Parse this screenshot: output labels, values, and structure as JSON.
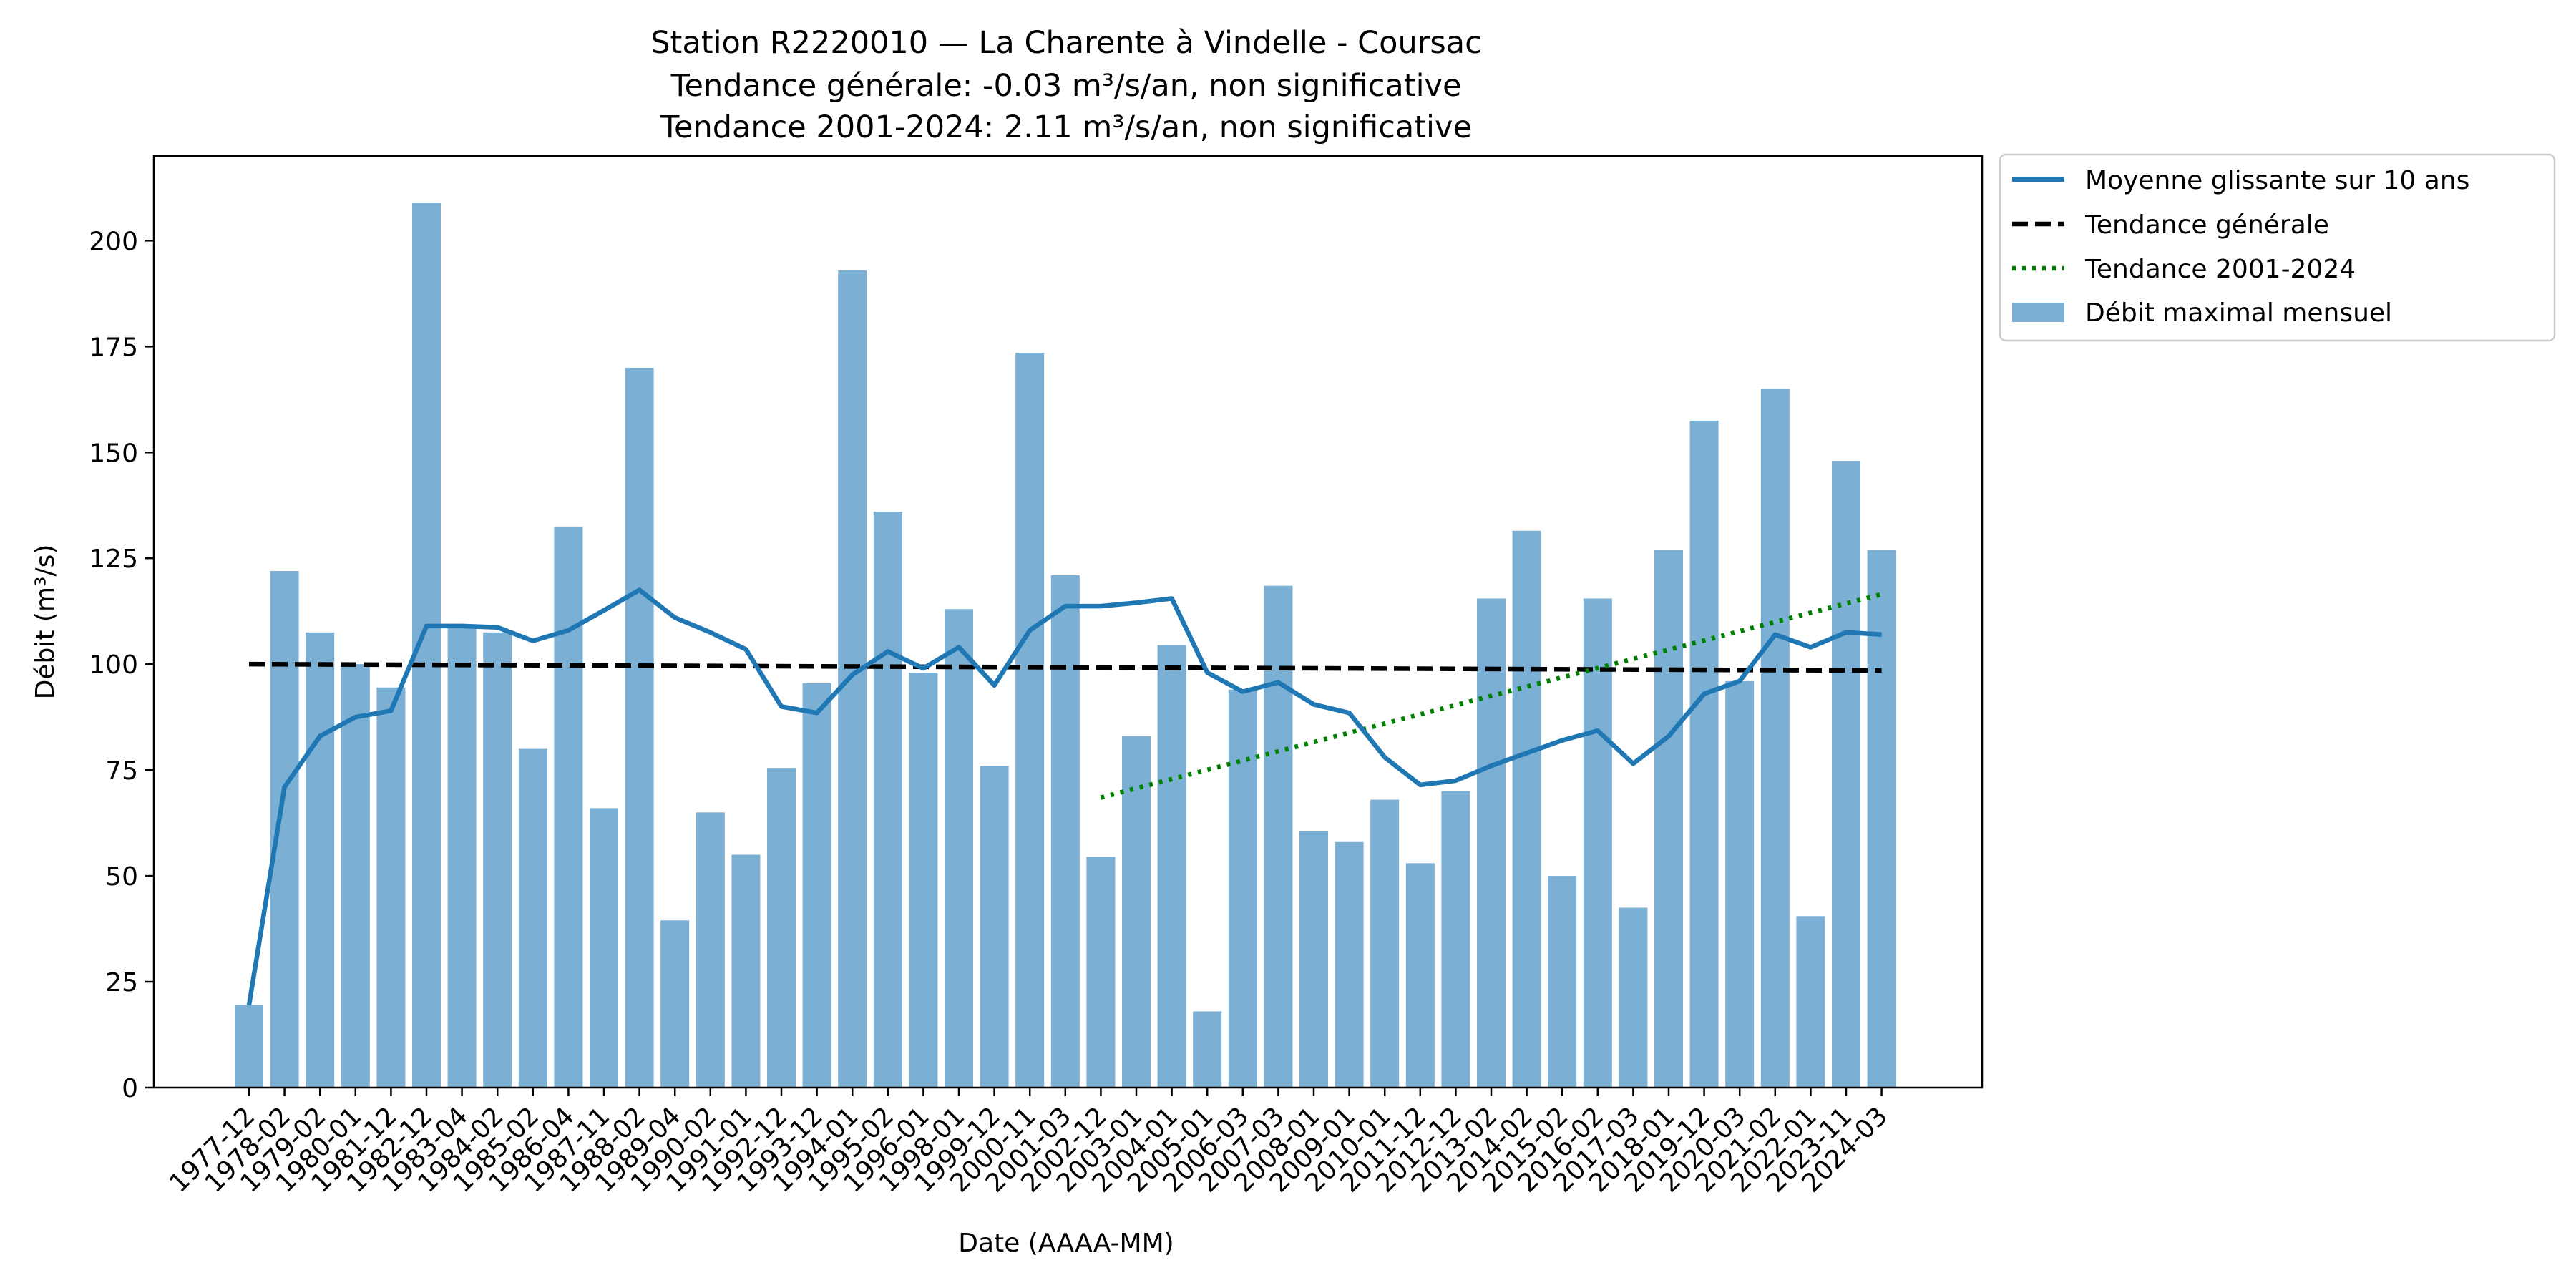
{
  "chart_data": {
    "type": "bar",
    "title": [
      "Station R2220010 — La Charente à Vindelle - Coursac",
      "Tendance générale: -0.03 m³/s/an, non significative",
      "Tendance 2001-2024: 2.11 m³/s/an, non significative"
    ],
    "xlabel": "Date (AAAA-MM)",
    "ylabel": "Débit (m³/s)",
    "ylim": [
      0,
      220
    ],
    "yticks": [
      0,
      25,
      50,
      75,
      100,
      125,
      150,
      175,
      200
    ],
    "grid": false,
    "legend_position": "outside-top-right",
    "categories": [
      "1977-12",
      "1978-02",
      "1979-02",
      "1980-01",
      "1981-12",
      "1982-12",
      "1983-04",
      "1984-02",
      "1985-02",
      "1986-04",
      "1987-11",
      "1988-02",
      "1989-04",
      "1990-02",
      "1991-01",
      "1992-12",
      "1993-12",
      "1994-01",
      "1995-02",
      "1996-01",
      "1998-01",
      "1999-12",
      "2000-11",
      "2001-03",
      "2002-12",
      "2003-01",
      "2004-01",
      "2005-01",
      "2006-03",
      "2007-03",
      "2008-01",
      "2009-01",
      "2010-01",
      "2011-12",
      "2012-12",
      "2013-02",
      "2014-02",
      "2015-02",
      "2016-02",
      "2017-03",
      "2018-01",
      "2019-12",
      "2020-03",
      "2021-02",
      "2022-01",
      "2023-11",
      "2024-03"
    ],
    "series": [
      {
        "name": "Débit maximal mensuel",
        "kind": "bar",
        "color": "#7bafd4",
        "values": [
          19.5,
          122,
          107.5,
          100,
          94.5,
          209,
          108.5,
          107.5,
          80,
          132.5,
          66,
          170,
          39.5,
          65,
          55,
          75.5,
          95.5,
          193,
          136,
          98,
          113,
          76,
          173.5,
          121,
          54.5,
          83,
          104.5,
          18,
          94,
          118.5,
          60.5,
          58,
          68,
          53,
          70,
          115.5,
          131.5,
          50,
          115.5,
          42.5,
          127,
          157.5,
          96,
          165,
          40.5,
          148,
          127
        ]
      },
      {
        "name": "Moyenne glissante sur 10 ans",
        "kind": "line",
        "color": "#1f77b4",
        "values": [
          19.5,
          71,
          83,
          87.5,
          89,
          109,
          109,
          108.7,
          105.5,
          108,
          112.7,
          117.5,
          111,
          107.5,
          103.5,
          90,
          88.5,
          97.5,
          103,
          99,
          104,
          95,
          108,
          113.7,
          113.7,
          114.5,
          115.5,
          98,
          93.5,
          95.7,
          90.5,
          88.5,
          78,
          71.5,
          72.5,
          76,
          79,
          82,
          84.3,
          76.5,
          83,
          93,
          96,
          107,
          104,
          107.5,
          107
        ]
      }
    ],
    "trend_lines": [
      {
        "name": "Tendance générale",
        "color": "#000000",
        "style": "dashed",
        "from_category": "1977-12",
        "to_category": "2024-03",
        "y_start": 100,
        "y_end": 98.5
      },
      {
        "name": "Tendance 2001-2024",
        "color": "#008000",
        "style": "dotted",
        "from_category": "2002-12",
        "to_category": "2024-03",
        "y_start": 68.5,
        "y_end": 116.5
      }
    ],
    "legend": [
      "Moyenne glissante sur 10 ans",
      "Tendance générale",
      "Tendance 2001-2024",
      "Débit maximal mensuel"
    ]
  }
}
